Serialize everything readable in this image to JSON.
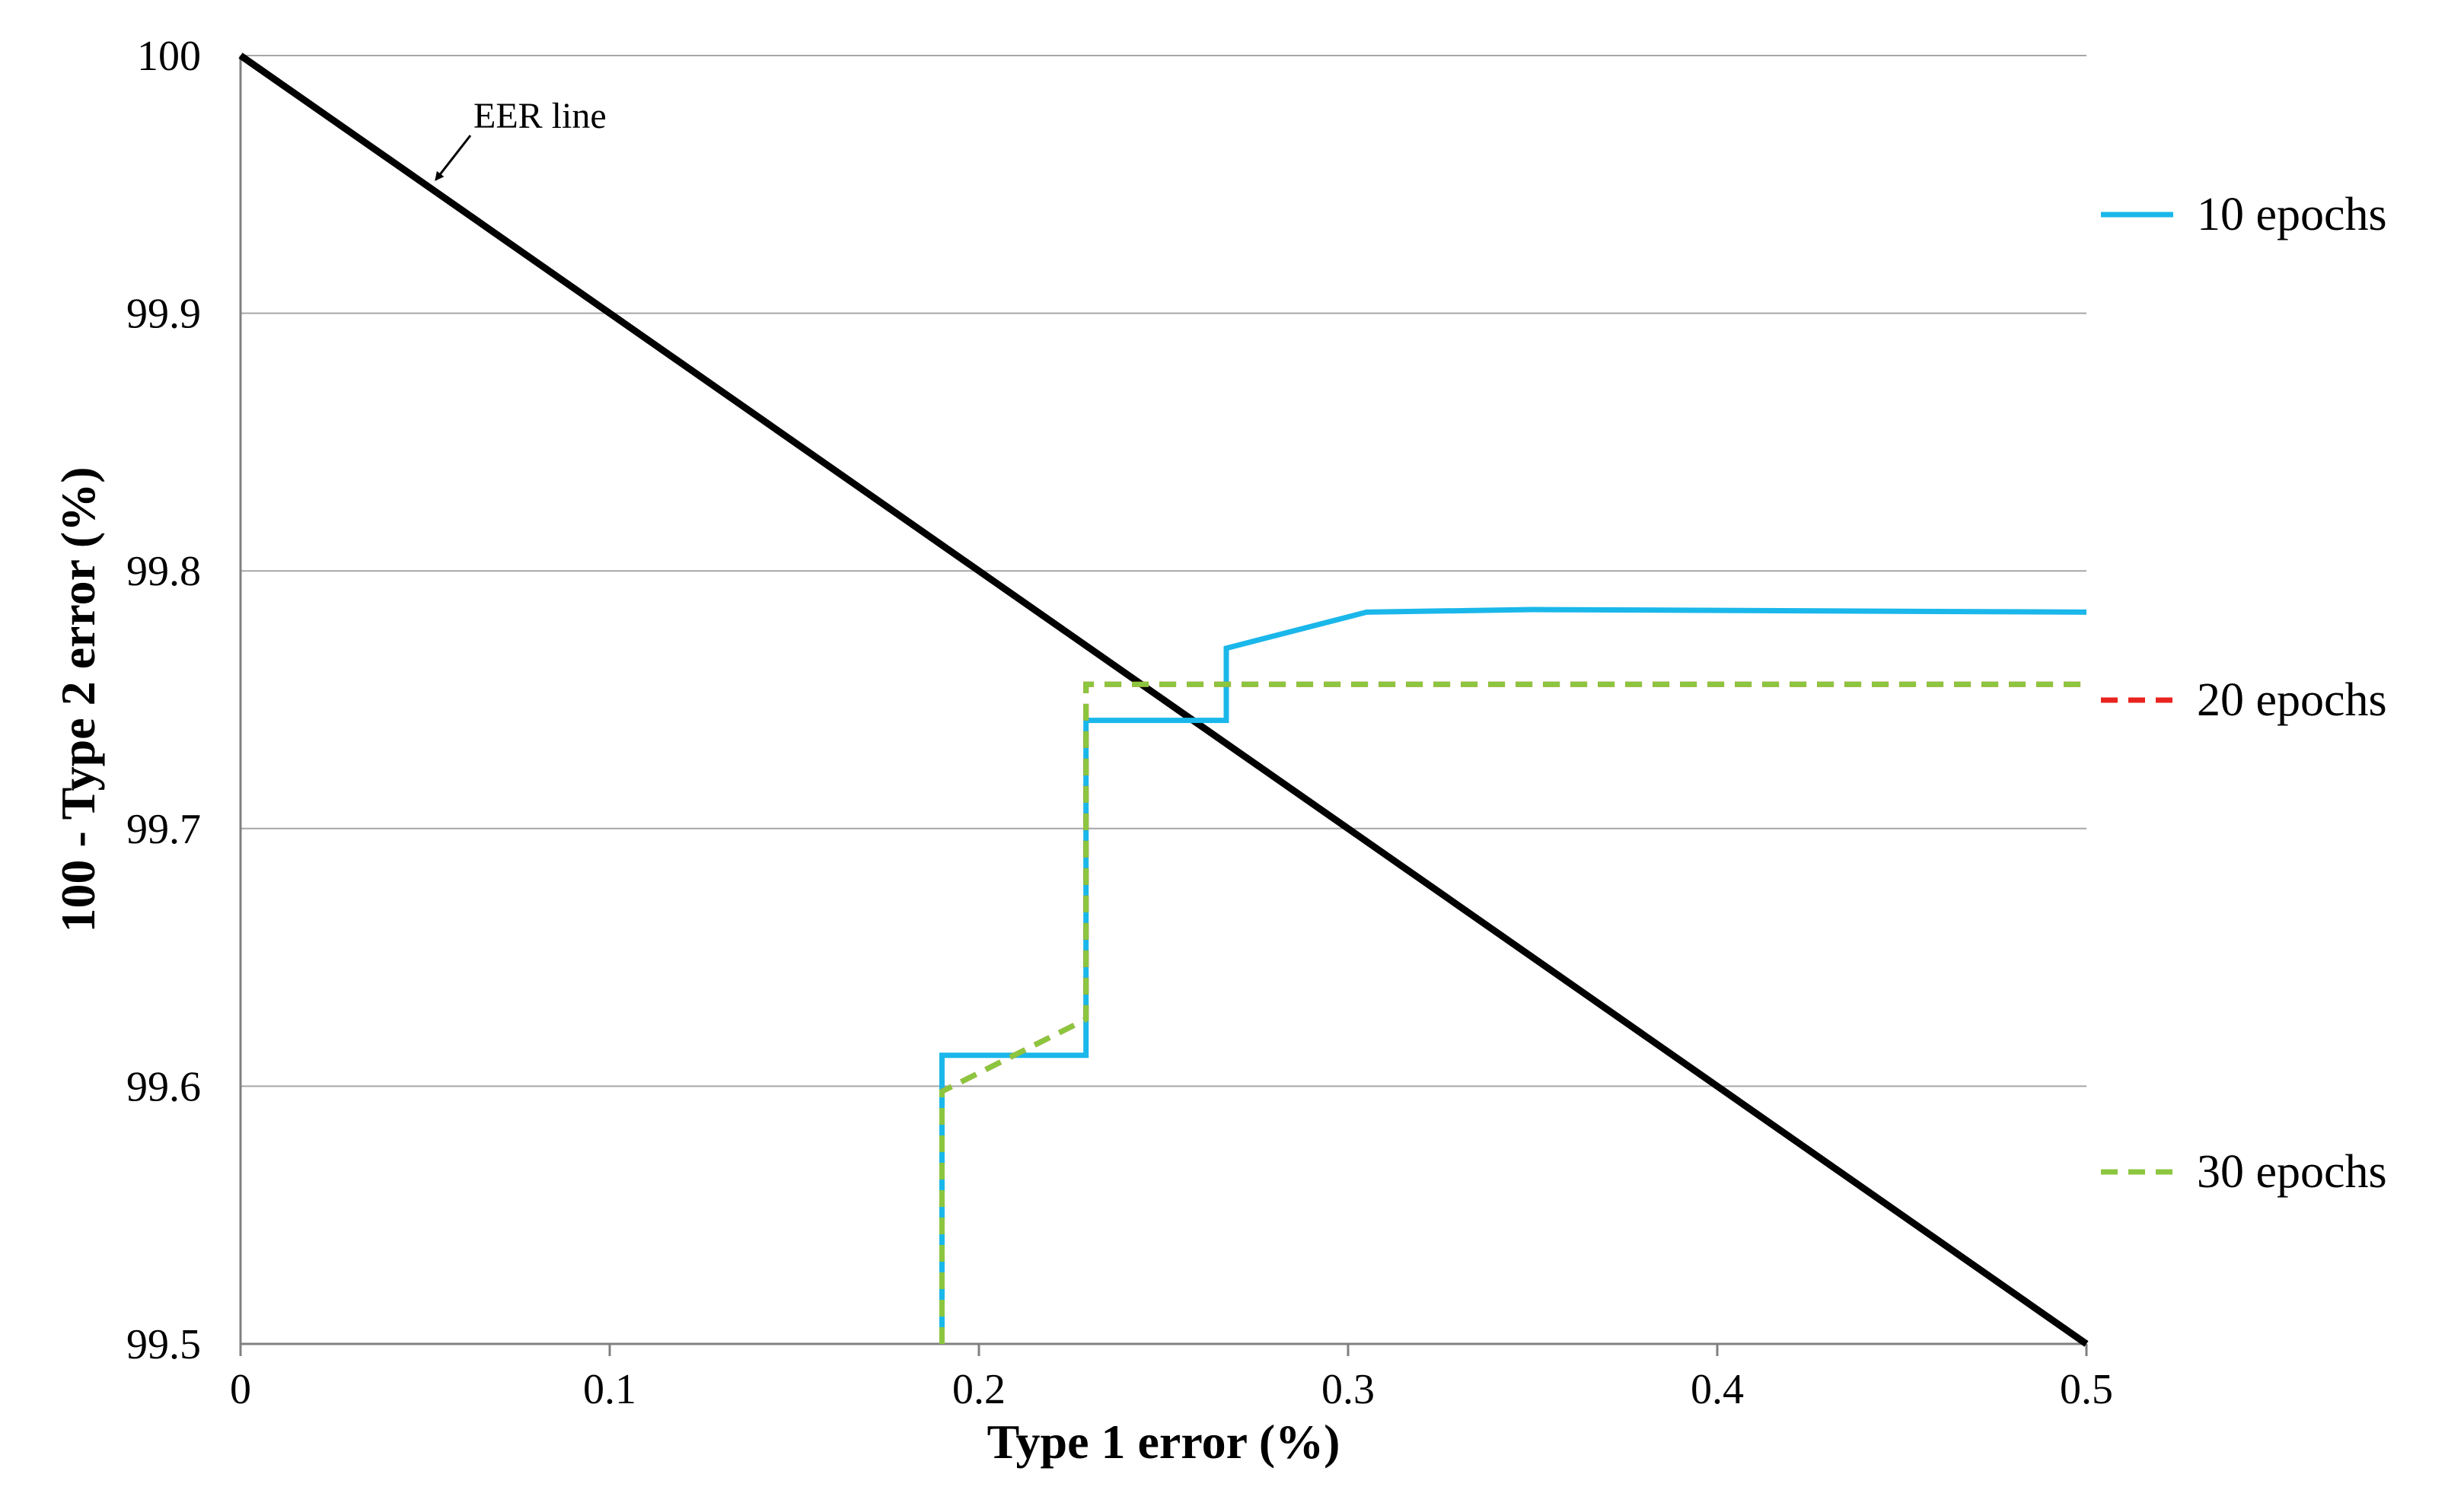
{
  "chart_data": {
    "type": "line",
    "xlabel": "Type 1 error (%)",
    "ylabel": "100 - Type 2 error (%)",
    "xlim": [
      0,
      0.5
    ],
    "ylim": [
      99.5,
      100
    ],
    "x_ticks": [
      "0",
      "0.1",
      "0.2",
      "0.3",
      "0.4",
      "0.5"
    ],
    "y_ticks": [
      "99.5",
      "99.6",
      "99.7",
      "99.8",
      "99.9",
      "100"
    ],
    "grid": "horizontal",
    "legend_position": "right",
    "annotation": {
      "text": "EER line",
      "points_to": [
        0.05,
        99.95
      ]
    },
    "eer_line": {
      "points": [
        [
          0,
          100
        ],
        [
          0.5,
          99.5
        ]
      ],
      "color": "#000000"
    },
    "series": [
      {
        "name": "10 epochs",
        "color": "#1ab7ea",
        "style": "solid",
        "points": [
          [
            0.19,
            99.5
          ],
          [
            0.19,
            99.612
          ],
          [
            0.229,
            99.612
          ],
          [
            0.229,
            99.742
          ],
          [
            0.267,
            99.742
          ],
          [
            0.267,
            99.77
          ],
          [
            0.305,
            99.784
          ],
          [
            0.35,
            99.785
          ],
          [
            0.5,
            99.784
          ]
        ]
      },
      {
        "name": "20 epochs",
        "color": "#e8231e",
        "style": "dashed",
        "points": [
          [
            0.19,
            99.5
          ],
          [
            0.19,
            99.598
          ],
          [
            0.229,
            99.626
          ],
          [
            0.229,
            99.756
          ],
          [
            0.5,
            99.756
          ]
        ]
      },
      {
        "name": "30 epochs",
        "color": "#8cc63f",
        "style": "dashed",
        "points": [
          [
            0.19,
            99.5
          ],
          [
            0.19,
            99.598
          ],
          [
            0.229,
            99.626
          ],
          [
            0.229,
            99.756
          ],
          [
            0.5,
            99.756
          ]
        ]
      }
    ]
  }
}
